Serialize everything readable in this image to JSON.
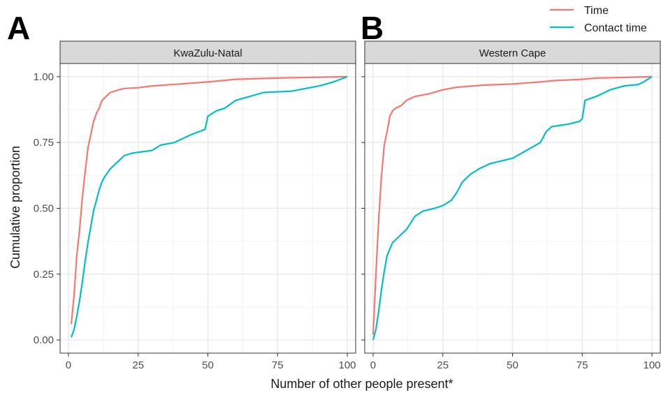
{
  "figure": {
    "xlabel": "Number of other people present*",
    "ylabel": "Cumulative proportion",
    "legend": {
      "placement": "top-right",
      "entries": [
        {
          "label": "Time",
          "color": "#F8766D"
        },
        {
          "label": "Contact time",
          "color": "#00BFC4"
        }
      ]
    }
  },
  "chart_data": [
    {
      "type": "line",
      "panel_label": "A",
      "strip_label": "KwaZulu-Natal",
      "xlim": [
        -3,
        103
      ],
      "ylim": [
        -0.05,
        1.05
      ],
      "x_ticks": [
        0,
        25,
        50,
        75,
        100
      ],
      "x_tick_labels": [
        "0",
        "25",
        "50",
        "75",
        "100"
      ],
      "y_ticks": [
        0,
        0.25,
        0.5,
        0.75,
        1
      ],
      "y_tick_labels": [
        "0.00",
        "0.25",
        "0.50",
        "0.75",
        "1.00"
      ],
      "grid": true,
      "series": [
        {
          "name": "Time",
          "color": "#F8766D",
          "points": [
            [
              1,
              0.06
            ],
            [
              2,
              0.17
            ],
            [
              3,
              0.32
            ],
            [
              4,
              0.42
            ],
            [
              5,
              0.54
            ],
            [
              6,
              0.64
            ],
            [
              7,
              0.73
            ],
            [
              8,
              0.78
            ],
            [
              9,
              0.83
            ],
            [
              10,
              0.86
            ],
            [
              11,
              0.88
            ],
            [
              12,
              0.91
            ],
            [
              13,
              0.92
            ],
            [
              15,
              0.94
            ],
            [
              18,
              0.95
            ],
            [
              20,
              0.955
            ],
            [
              25,
              0.958
            ],
            [
              30,
              0.965
            ],
            [
              40,
              0.972
            ],
            [
              50,
              0.98
            ],
            [
              55,
              0.985
            ],
            [
              60,
              0.99
            ],
            [
              75,
              0.995
            ],
            [
              90,
              0.998
            ],
            [
              100,
              1.0
            ]
          ]
        },
        {
          "name": "Contact time",
          "color": "#00BFC4",
          "points": [
            [
              1,
              0.01
            ],
            [
              2,
              0.04
            ],
            [
              3,
              0.09
            ],
            [
              4,
              0.15
            ],
            [
              5,
              0.22
            ],
            [
              6,
              0.3
            ],
            [
              7,
              0.37
            ],
            [
              8,
              0.43
            ],
            [
              9,
              0.49
            ],
            [
              10,
              0.53
            ],
            [
              11,
              0.57
            ],
            [
              12,
              0.6
            ],
            [
              13,
              0.62
            ],
            [
              15,
              0.65
            ],
            [
              17,
              0.67
            ],
            [
              20,
              0.7
            ],
            [
              23,
              0.71
            ],
            [
              30,
              0.72
            ],
            [
              33,
              0.74
            ],
            [
              38,
              0.75
            ],
            [
              40,
              0.76
            ],
            [
              44,
              0.78
            ],
            [
              49,
              0.8
            ],
            [
              50,
              0.85
            ],
            [
              53,
              0.87
            ],
            [
              56,
              0.88
            ],
            [
              60,
              0.91
            ],
            [
              65,
              0.925
            ],
            [
              70,
              0.94
            ],
            [
              80,
              0.945
            ],
            [
              85,
              0.955
            ],
            [
              90,
              0.965
            ],
            [
              95,
              0.98
            ],
            [
              100,
              1.0
            ]
          ]
        }
      ]
    },
    {
      "type": "line",
      "panel_label": "B",
      "strip_label": "Western Cape",
      "xlim": [
        -3,
        103
      ],
      "ylim": [
        -0.05,
        1.05
      ],
      "x_ticks": [
        0,
        25,
        50,
        75,
        100
      ],
      "x_tick_labels": [
        "0",
        "25",
        "50",
        "75",
        "100"
      ],
      "y_ticks": [
        0,
        0.25,
        0.5,
        0.75,
        1
      ],
      "y_tick_labels": [
        "0.00",
        "0.25",
        "0.50",
        "0.75",
        "1.00"
      ],
      "grid": true,
      "series": [
        {
          "name": "Time",
          "color": "#F8766D",
          "points": [
            [
              0,
              0.02
            ],
            [
              1,
              0.25
            ],
            [
              2,
              0.46
            ],
            [
              3,
              0.62
            ],
            [
              4,
              0.74
            ],
            [
              5,
              0.79
            ],
            [
              6,
              0.85
            ],
            [
              7,
              0.87
            ],
            [
              8,
              0.88
            ],
            [
              10,
              0.89
            ],
            [
              12,
              0.91
            ],
            [
              15,
              0.925
            ],
            [
              20,
              0.935
            ],
            [
              25,
              0.95
            ],
            [
              30,
              0.96
            ],
            [
              40,
              0.968
            ],
            [
              50,
              0.972
            ],
            [
              60,
              0.98
            ],
            [
              65,
              0.985
            ],
            [
              75,
              0.99
            ],
            [
              80,
              0.995
            ],
            [
              90,
              0.997
            ],
            [
              100,
              1.0
            ]
          ]
        },
        {
          "name": "Contact time",
          "color": "#00BFC4",
          "points": [
            [
              0,
              0.0
            ],
            [
              1,
              0.04
            ],
            [
              2,
              0.11
            ],
            [
              3,
              0.19
            ],
            [
              4,
              0.26
            ],
            [
              5,
              0.32
            ],
            [
              7,
              0.37
            ],
            [
              9,
              0.39
            ],
            [
              12,
              0.42
            ],
            [
              15,
              0.47
            ],
            [
              18,
              0.49
            ],
            [
              22,
              0.5
            ],
            [
              25,
              0.51
            ],
            [
              28,
              0.53
            ],
            [
              30,
              0.56
            ],
            [
              32,
              0.6
            ],
            [
              35,
              0.63
            ],
            [
              38,
              0.65
            ],
            [
              42,
              0.67
            ],
            [
              46,
              0.68
            ],
            [
              50,
              0.69
            ],
            [
              55,
              0.72
            ],
            [
              60,
              0.75
            ],
            [
              62,
              0.79
            ],
            [
              64,
              0.81
            ],
            [
              70,
              0.82
            ],
            [
              74,
              0.83
            ],
            [
              75,
              0.84
            ],
            [
              76,
              0.91
            ],
            [
              80,
              0.925
            ],
            [
              85,
              0.95
            ],
            [
              90,
              0.965
            ],
            [
              95,
              0.97
            ],
            [
              97,
              0.98
            ],
            [
              100,
              1.0
            ]
          ]
        }
      ]
    }
  ]
}
